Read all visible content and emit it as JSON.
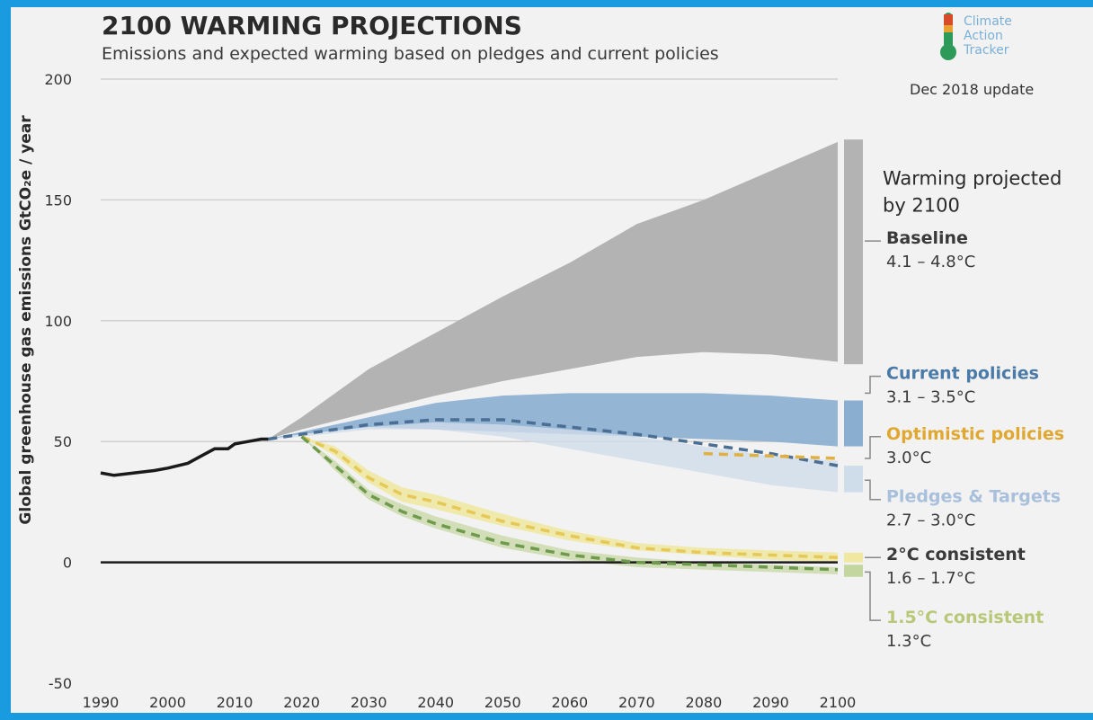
{
  "header": {
    "title": "2100 WARMING PROJECTIONS",
    "subtitle": "Emissions and expected warming based on pledges and current policies"
  },
  "logo": {
    "line1": "Climate",
    "line2": "Action",
    "line3": "Tracker"
  },
  "update_note": "Dec 2018 update",
  "colors": {
    "background": "#f2f2f2",
    "frame": "#1a9be0",
    "historical": "#1a1a1a",
    "baseline": "#b3b3b3",
    "current_policies": "#8aaed0",
    "optimistic": "#e0b040",
    "pledges": "#cfdcea",
    "two_deg": "#f0e8a0",
    "one_five_deg": "#c4d6a0",
    "zero_line": "#1a1a1a",
    "grid": "#d0d0d0"
  },
  "chart_data": {
    "type": "area",
    "title": "2100 WARMING PROJECTIONS",
    "subtitle": "Emissions and expected warming based on pledges and current policies",
    "ylabel": "Global greenhouse gas emissions GtCO₂e / year",
    "xlabel": "",
    "xlim": [
      1990,
      2100
    ],
    "ylim": [
      -50,
      200
    ],
    "x_ticks": [
      1990,
      2000,
      2010,
      2020,
      2030,
      2040,
      2050,
      2060,
      2070,
      2080,
      2090,
      2100
    ],
    "y_ticks": [
      -50,
      0,
      50,
      100,
      150,
      200
    ],
    "grid": "horizontal",
    "historical": {
      "x": [
        1990,
        1992,
        1995,
        1998,
        2000,
        2003,
        2005,
        2007,
        2009,
        2010,
        2012,
        2014,
        2015
      ],
      "y": [
        37,
        36,
        37,
        38,
        39,
        41,
        44,
        47,
        47,
        49,
        50,
        51,
        51
      ]
    },
    "bands": [
      {
        "name": "Baseline",
        "x": [
          2010,
          2015,
          2020,
          2030,
          2040,
          2050,
          2060,
          2070,
          2080,
          2090,
          2100
        ],
        "upper": [
          44,
          51,
          60,
          80,
          95,
          110,
          124,
          140,
          150,
          162,
          174
        ],
        "lower": [
          44,
          51,
          55,
          62,
          69,
          75,
          80,
          85,
          87,
          86,
          83
        ]
      },
      {
        "name": "Current policies",
        "x": [
          2015,
          2020,
          2030,
          2040,
          2050,
          2060,
          2070,
          2080,
          2090,
          2100
        ],
        "upper": [
          51,
          54,
          60,
          66,
          69,
          70,
          70,
          70,
          69,
          67
        ],
        "lower": [
          51,
          53,
          56,
          55,
          54,
          53,
          52,
          51,
          50,
          48
        ]
      },
      {
        "name": "Pledges & Targets",
        "x": [
          2015,
          2020,
          2030,
          2040,
          2050,
          2060,
          2070,
          2080,
          2090,
          2100
        ],
        "upper": [
          51,
          53,
          56,
          58,
          57,
          55,
          52,
          48,
          44,
          42
        ],
        "lower": [
          51,
          52,
          55,
          55,
          52,
          47,
          42,
          37,
          32,
          29
        ]
      },
      {
        "name": "2°C consistent",
        "x": [
          2020,
          2025,
          2030,
          2035,
          2040,
          2050,
          2060,
          2070,
          2080,
          2090,
          2100
        ],
        "upper": [
          52,
          48,
          38,
          31,
          28,
          20,
          13,
          8,
          6,
          5,
          4
        ],
        "lower": [
          52,
          44,
          33,
          25,
          22,
          15,
          9,
          5,
          3,
          1,
          0
        ]
      },
      {
        "name": "1.5°C consistent",
        "x": [
          2020,
          2025,
          2030,
          2035,
          2040,
          2050,
          2060,
          2070,
          2080,
          2090,
          2100
        ],
        "upper": [
          52,
          42,
          30,
          24,
          19,
          11,
          5,
          2,
          0,
          -1,
          -2
        ],
        "lower": [
          52,
          38,
          26,
          19,
          14,
          6,
          1,
          -2,
          -3,
          -4,
          -5
        ]
      }
    ],
    "dashed_lines": [
      {
        "name": "Current policies",
        "color": "#4a6e94",
        "x": [
          2015,
          2020,
          2030,
          2040,
          2050,
          2060,
          2070,
          2080,
          2090,
          2100
        ],
        "y": [
          51,
          53,
          57,
          59,
          59,
          56,
          53,
          49,
          45,
          40
        ]
      },
      {
        "name": "Optimistic policies",
        "color": "#e0b040",
        "x": [
          2080,
          2090,
          2100
        ],
        "y": [
          45,
          44,
          43
        ]
      },
      {
        "name": "2°C consistent",
        "color": "#e6c858",
        "x": [
          2020,
          2025,
          2030,
          2035,
          2040,
          2050,
          2060,
          2070,
          2080,
          2090,
          2100
        ],
        "y": [
          52,
          46,
          35,
          28,
          25,
          17,
          11,
          6,
          4,
          3,
          2
        ]
      },
      {
        "name": "1.5°C consistent",
        "color": "#6e9a4e",
        "x": [
          2020,
          2025,
          2030,
          2035,
          2040,
          2050,
          2060,
          2070,
          2080,
          2090,
          2100
        ],
        "y": [
          52,
          40,
          28,
          21,
          16,
          8,
          3,
          0,
          -1,
          -2,
          -3
        ]
      }
    ],
    "warming_heading": "Warming projected by 2100",
    "warming_heading_lines": [
      "Warming projected",
      "by 2100"
    ],
    "warming_bars": [
      {
        "name": "Baseline",
        "low": 82,
        "high": 175,
        "color": "#b3b3b3"
      },
      {
        "name": "Current policies",
        "low": 48,
        "high": 67,
        "color": "#8aaed0"
      },
      {
        "name": "Pledges & Targets",
        "low": 29,
        "high": 40,
        "color": "#cfdcea"
      },
      {
        "name": "2°C consistent",
        "low": 0,
        "high": 4,
        "color": "#f0e8a0"
      },
      {
        "name": "1.5°C consistent",
        "low": -6,
        "high": -1,
        "color": "#c4d6a0"
      }
    ],
    "scenarios": [
      {
        "name": "Baseline",
        "range": "4.1 – 4.8°C",
        "color": "#3a3a3a",
        "anchor_y": 133,
        "label_y": 133
      },
      {
        "name": "Current policies",
        "range": "3.1 – 3.5°C",
        "color": "#4a7aa8",
        "anchor_y": 70,
        "label_y": 77
      },
      {
        "name": "Optimistic policies",
        "range": "3.0°C",
        "color": "#e0a830",
        "anchor_y": 43,
        "label_y": 52
      },
      {
        "name": "Pledges & Targets",
        "range": "2.7 – 3.0°C",
        "color": "#a8c0dc",
        "anchor_y": 34,
        "label_y": 26
      },
      {
        "name": "2°C consistent",
        "range": "1.6 – 1.7°C",
        "color": "#3a3a3a",
        "anchor_y": 2,
        "label_y": 2
      },
      {
        "name": "1.5°C consistent",
        "range": "1.3°C",
        "color": "#b8c878",
        "anchor_y": -4,
        "label_y": -24
      }
    ]
  }
}
